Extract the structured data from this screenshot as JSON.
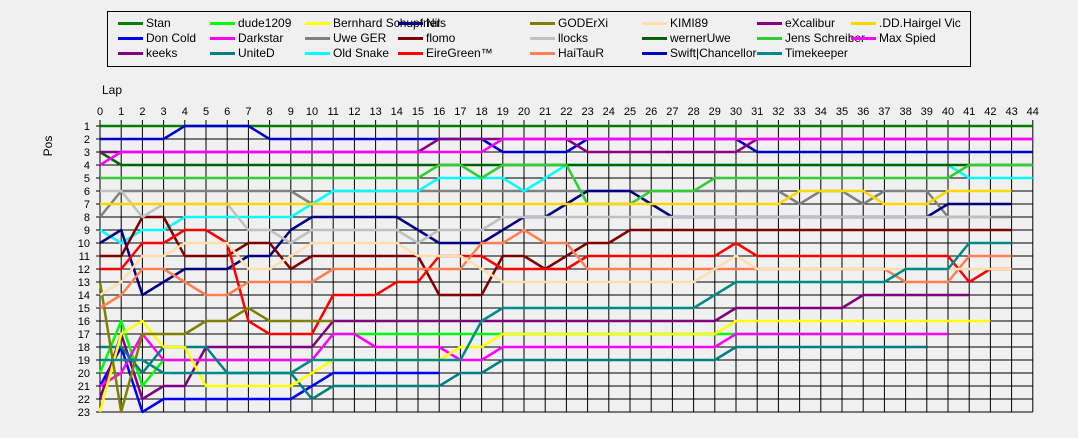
{
  "chart_data": {
    "type": "line",
    "title": "",
    "xlabel": "Lap",
    "ylabel": "Pos",
    "x_ticks": [
      "0",
      "1",
      "2",
      "3",
      "4",
      "5",
      "6",
      "7",
      "8",
      "9",
      "10",
      "11",
      "12",
      "13",
      "14",
      "15",
      "16",
      "17",
      "18",
      "19",
      "20",
      "21",
      "22",
      "23",
      "24",
      "25",
      "26",
      "27",
      "28",
      "29",
      "30",
      "31",
      "32",
      "33",
      "34",
      "35",
      "36",
      "37",
      "38",
      "39",
      "40",
      "41",
      "42",
      "43",
      "44"
    ],
    "y_ticks": [
      "1",
      "2",
      "3",
      "4",
      "5",
      "6",
      "7",
      "8",
      "9",
      "10",
      "11",
      "12",
      "13",
      "14",
      "15",
      "16",
      "17",
      "18",
      "19",
      "20",
      "21",
      "22",
      "23"
    ],
    "xlim": [
      0,
      44
    ],
    "ylim": [
      1,
      23
    ],
    "y_inverted": true,
    "grid": true,
    "legend_position": "top",
    "series": [
      {
        "name": "Stan",
        "color": "#008000",
        "values": [
          1,
          1,
          1,
          1,
          1,
          1,
          1,
          1,
          1,
          1,
          1,
          1,
          1,
          1,
          1,
          1,
          1,
          1,
          1,
          1,
          1,
          1,
          1,
          1,
          1,
          1,
          1,
          1,
          1,
          1,
          1,
          1,
          1,
          1,
          1,
          1,
          1,
          1,
          1,
          1,
          1,
          1,
          1,
          1,
          1
        ]
      },
      {
        "name": "Don Cold",
        "color": "#0000ff",
        "values": [
          21,
          18,
          23,
          22,
          22,
          22,
          22,
          22,
          22,
          22,
          21,
          20,
          20,
          20,
          20,
          20,
          20
        ]
      },
      {
        "name": "keeks",
        "color": "#800080",
        "values": [
          22,
          17,
          22,
          21,
          21,
          18,
          18,
          18,
          18,
          18,
          18,
          16,
          16,
          16,
          16,
          16,
          16,
          16,
          16,
          16,
          16,
          16,
          16,
          16,
          16,
          16,
          16,
          16,
          16,
          16,
          15,
          15,
          15,
          15,
          15,
          15,
          14,
          14,
          14,
          14,
          14,
          14
        ]
      },
      {
        "name": "dude1209",
        "color": "#00ff00",
        "values": [
          20,
          16,
          21,
          19,
          19,
          19,
          19,
          19,
          19,
          19,
          19,
          17,
          17,
          17,
          17,
          17,
          17,
          17,
          17,
          17,
          17,
          17,
          17,
          17,
          17,
          17,
          17,
          17,
          17,
          17,
          17,
          17,
          17,
          17,
          17,
          17,
          17,
          17,
          17,
          17
        ]
      },
      {
        "name": "Darkstar",
        "color": "#ff00ff",
        "values": [
          21,
          20,
          17,
          19,
          19,
          19,
          19,
          19,
          19,
          19,
          19,
          17,
          17,
          18,
          18,
          18,
          18,
          19,
          19,
          18,
          18,
          18,
          18,
          18,
          18,
          18,
          18,
          18,
          18,
          18,
          17,
          17,
          17,
          17,
          17,
          17,
          17,
          17,
          17,
          17,
          17
        ]
      },
      {
        "name": "UniteD",
        "color": "#008080",
        "values": [
          18,
          18,
          20,
          18,
          18,
          18,
          20,
          20,
          20,
          20,
          22,
          21,
          21,
          21,
          21,
          21,
          21,
          20,
          20,
          19,
          19,
          19,
          19,
          19,
          19,
          19,
          19,
          19,
          19,
          19,
          18,
          18,
          18,
          18,
          18,
          18,
          18,
          18,
          18,
          18
        ]
      },
      {
        "name": "Bernhard Schupfner",
        "color": "#ffff00",
        "values": [
          23,
          17,
          16,
          18,
          18,
          21,
          21,
          21,
          21,
          21,
          20,
          19,
          19,
          19,
          19,
          19,
          19,
          18,
          18,
          17,
          17,
          17,
          17,
          17,
          17,
          17,
          17,
          17,
          17,
          17,
          16,
          16,
          16,
          16,
          16,
          16,
          16,
          16,
          16,
          16,
          16,
          16,
          16
        ]
      },
      {
        "name": "Uwe GER",
        "color": "#808080",
        "values": [
          8,
          6,
          6,
          6,
          6,
          6,
          6,
          6,
          6,
          6,
          7,
          6,
          6,
          6,
          6,
          6,
          6,
          6,
          6,
          6,
          6,
          6,
          6,
          6,
          6,
          6,
          6,
          6,
          6,
          6,
          6,
          6,
          6,
          7,
          6,
          6,
          7,
          6,
          6,
          6,
          8,
          8,
          8,
          8
        ]
      },
      {
        "name": "Old Snake",
        "color": "#00ffff",
        "values": [
          9,
          10,
          9,
          9,
          8,
          8,
          8,
          8,
          8,
          8,
          7,
          6,
          6,
          6,
          6,
          6,
          5,
          5,
          5,
          5,
          6,
          5,
          4,
          4,
          4,
          4,
          4,
          4,
          4,
          4,
          4,
          4,
          4,
          4,
          4,
          4,
          4,
          4,
          4,
          4,
          4,
          5,
          5,
          5,
          5
        ]
      },
      {
        "name": "Nils",
        "color": "#000080",
        "values": [
          10,
          9,
          14,
          13,
          12,
          12,
          12,
          11,
          11,
          9,
          8,
          8,
          8,
          8,
          8,
          9,
          10,
          10,
          10,
          9,
          8,
          8,
          7,
          6,
          6,
          6,
          7,
          8,
          8,
          8,
          8,
          8,
          8,
          8,
          8,
          8,
          8,
          8,
          8,
          8,
          7,
          7,
          7,
          7
        ]
      },
      {
        "name": "flomo",
        "color": "#800000",
        "values": [
          11,
          11,
          8,
          8,
          11,
          11,
          11,
          10,
          10,
          12,
          11,
          11,
          11,
          11,
          11,
          11,
          14,
          14,
          14,
          11,
          11,
          12,
          11,
          10,
          10,
          9,
          9,
          9,
          9,
          9,
          9,
          9,
          9,
          9,
          9,
          9,
          9,
          9,
          9,
          9,
          9,
          9,
          9,
          9
        ]
      },
      {
        "name": "EireGreen™",
        "color": "#ff0000",
        "values": [
          12,
          12,
          10,
          10,
          9,
          9,
          10,
          16,
          17,
          17,
          17,
          14,
          14,
          14,
          13,
          13,
          11,
          11,
          11,
          12,
          12,
          12,
          12,
          11,
          11,
          11,
          11,
          11,
          11,
          11,
          10,
          11,
          11,
          11,
          11,
          11,
          11,
          11,
          11,
          11,
          11,
          13,
          12,
          12
        ]
      },
      {
        "name": "GODErXi",
        "color": "#808000",
        "values": [
          13,
          23,
          17,
          17,
          17,
          16,
          16,
          15,
          16,
          16,
          16,
          16
        ]
      },
      {
        "name": "llocks",
        "color": "#c0c0c0",
        "values": [
          6,
          6,
          8,
          7,
          7,
          7,
          7,
          9,
          9,
          10,
          9,
          9,
          9,
          9,
          9,
          10,
          9,
          9,
          9,
          8,
          8,
          8,
          8,
          8,
          8,
          8,
          8,
          8,
          8,
          8,
          8,
          8,
          8,
          8,
          8,
          8,
          8,
          8,
          8,
          8,
          8,
          8,
          8
        ]
      },
      {
        "name": "HaiTauR",
        "color": "#ff7f50",
        "values": [
          15,
          14,
          12,
          12,
          13,
          14,
          14,
          13,
          13,
          13,
          13,
          12,
          12,
          12,
          12,
          12,
          12,
          12,
          10,
          10,
          9,
          10,
          10,
          12,
          12,
          12,
          12,
          12,
          12,
          12,
          12,
          12,
          12,
          12,
          12,
          12,
          12,
          12,
          13,
          13,
          13,
          11,
          11,
          11
        ]
      },
      {
        "name": "KIMI89",
        "color": "#ffdead",
        "values": [
          14,
          13,
          11,
          11,
          10,
          10,
          10,
          12,
          12,
          11,
          10,
          10,
          10,
          10,
          10,
          11,
          11,
          11,
          12,
          13,
          13,
          13,
          13,
          13,
          13,
          13,
          13,
          13,
          13,
          12,
          11,
          12,
          12,
          12,
          12,
          12,
          12,
          12,
          12,
          12,
          12,
          12,
          12,
          12
        ]
      },
      {
        "name": "wernerUwe",
        "color": "#006400",
        "values": [
          3,
          4,
          4,
          4,
          4,
          4,
          4,
          4,
          4,
          4,
          4,
          4,
          4,
          4,
          4,
          4,
          4,
          4,
          4,
          4,
          4,
          4,
          4,
          4,
          4,
          4,
          4,
          4,
          4,
          4,
          4,
          4,
          4,
          4,
          4,
          4,
          4,
          4,
          4,
          4,
          4,
          4,
          4,
          4,
          4
        ]
      },
      {
        "name": "Swift|Chancellor",
        "color": "#0000cd",
        "values": [
          2,
          2,
          2,
          2,
          1,
          1,
          1,
          1,
          2,
          2,
          2,
          2,
          2,
          2,
          2,
          2,
          2,
          2,
          2,
          3,
          3,
          3,
          3,
          2,
          2,
          2,
          2,
          2,
          2,
          2,
          2,
          3,
          3,
          3,
          3,
          3,
          3,
          3,
          3,
          3,
          3,
          3,
          3,
          3,
          3
        ]
      },
      {
        "name": "eXcalibur",
        "color": "#8b008b",
        "values": [
          3,
          3,
          3,
          3,
          3,
          3,
          3,
          3,
          3,
          3,
          3,
          3,
          3,
          3,
          3,
          3,
          2,
          2,
          2,
          2,
          2,
          2,
          2,
          3,
          3,
          3,
          3,
          3,
          3,
          3,
          3,
          2,
          2,
          2,
          2,
          2,
          2,
          2,
          2,
          2,
          2,
          2,
          2,
          2,
          2
        ]
      },
      {
        "name": "Jens Schreiber",
        "color": "#32cd32",
        "values": [
          5,
          5,
          5,
          5,
          5,
          5,
          5,
          5,
          5,
          5,
          5,
          5,
          5,
          5,
          5,
          5,
          4,
          4,
          5,
          4,
          4,
          4,
          4,
          7,
          7,
          7,
          6,
          6,
          6,
          5,
          5,
          5,
          5,
          5,
          5,
          5,
          5,
          5,
          5,
          5,
          5,
          4,
          4,
          4,
          4
        ]
      },
      {
        "name": "Timekeeper",
        "color": "#008b8b",
        "values": [
          19,
          19,
          19,
          20,
          20,
          20,
          20,
          20,
          20,
          20,
          19,
          19,
          19,
          19,
          19,
          19,
          19,
          19,
          16,
          15,
          15,
          15,
          15,
          15,
          15,
          15,
          15,
          15,
          15,
          14,
          13,
          13,
          13,
          13,
          13,
          13,
          13,
          13,
          12,
          12,
          12,
          10,
          10,
          10
        ]
      },
      {
        "name": ".DD.Hairgel Vic",
        "color": "#ffd700",
        "values": [
          7,
          7,
          7,
          7,
          7,
          7,
          7,
          7,
          7,
          7,
          7,
          7,
          7,
          7,
          7,
          7,
          7,
          7,
          7,
          7,
          7,
          7,
          7,
          7,
          7,
          7,
          7,
          7,
          7,
          7,
          7,
          7,
          7,
          6,
          6,
          6,
          6,
          7,
          7,
          7,
          6,
          6,
          6,
          6
        ]
      },
      {
        "name": "Max Spied",
        "color": "#ff00ff",
        "values": [
          4,
          3,
          3,
          3,
          3,
          3,
          3,
          3,
          3,
          3,
          3,
          3,
          3,
          3,
          3,
          3,
          3,
          3,
          3,
          2,
          2,
          2,
          2,
          2,
          2,
          2,
          2,
          2,
          2,
          2,
          2,
          2,
          2,
          2,
          2,
          2,
          2,
          2,
          2,
          2,
          2,
          2,
          2,
          2,
          2
        ]
      }
    ]
  }
}
